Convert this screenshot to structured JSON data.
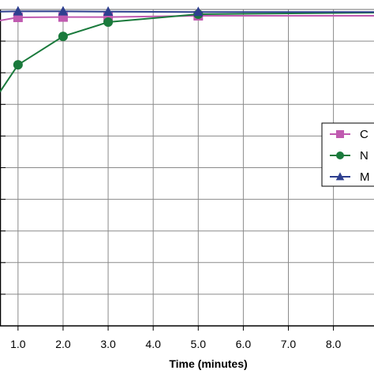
{
  "chart_data": {
    "type": "line",
    "title": "",
    "xlabel": "Time (minutes)",
    "ylabel": "",
    "xlim": [
      0.6,
      8.9
    ],
    "ylim": [
      0.0,
      1.0
    ],
    "x_ticks": [
      "1.0",
      "2.0",
      "3.0",
      "4.0",
      "5.0",
      "6.0",
      "7.0",
      "8.0"
    ],
    "x_tick_values": [
      1,
      2,
      3,
      4,
      5,
      6,
      7,
      8
    ],
    "grid": true,
    "legend_position": "right",
    "series": [
      {
        "name": "C",
        "color": "#c05ab0",
        "marker": "square",
        "x": [
          0.6,
          1,
          2,
          3,
          5,
          8.9
        ],
        "y": [
          0.965,
          0.975,
          0.976,
          0.976,
          0.98,
          0.98
        ]
      },
      {
        "name": "N",
        "color": "#1a7a3c",
        "marker": "circle",
        "x": [
          0.6,
          1,
          2,
          3,
          5,
          8.9
        ],
        "y": [
          0.74,
          0.825,
          0.915,
          0.96,
          0.985,
          0.99
        ]
      },
      {
        "name": "M",
        "color": "#2e3f8f",
        "marker": "triangle",
        "x": [
          0.6,
          1,
          2,
          3,
          5,
          8.9
        ],
        "y": [
          0.993,
          0.994,
          0.994,
          0.993,
          0.992,
          0.992
        ]
      }
    ]
  }
}
